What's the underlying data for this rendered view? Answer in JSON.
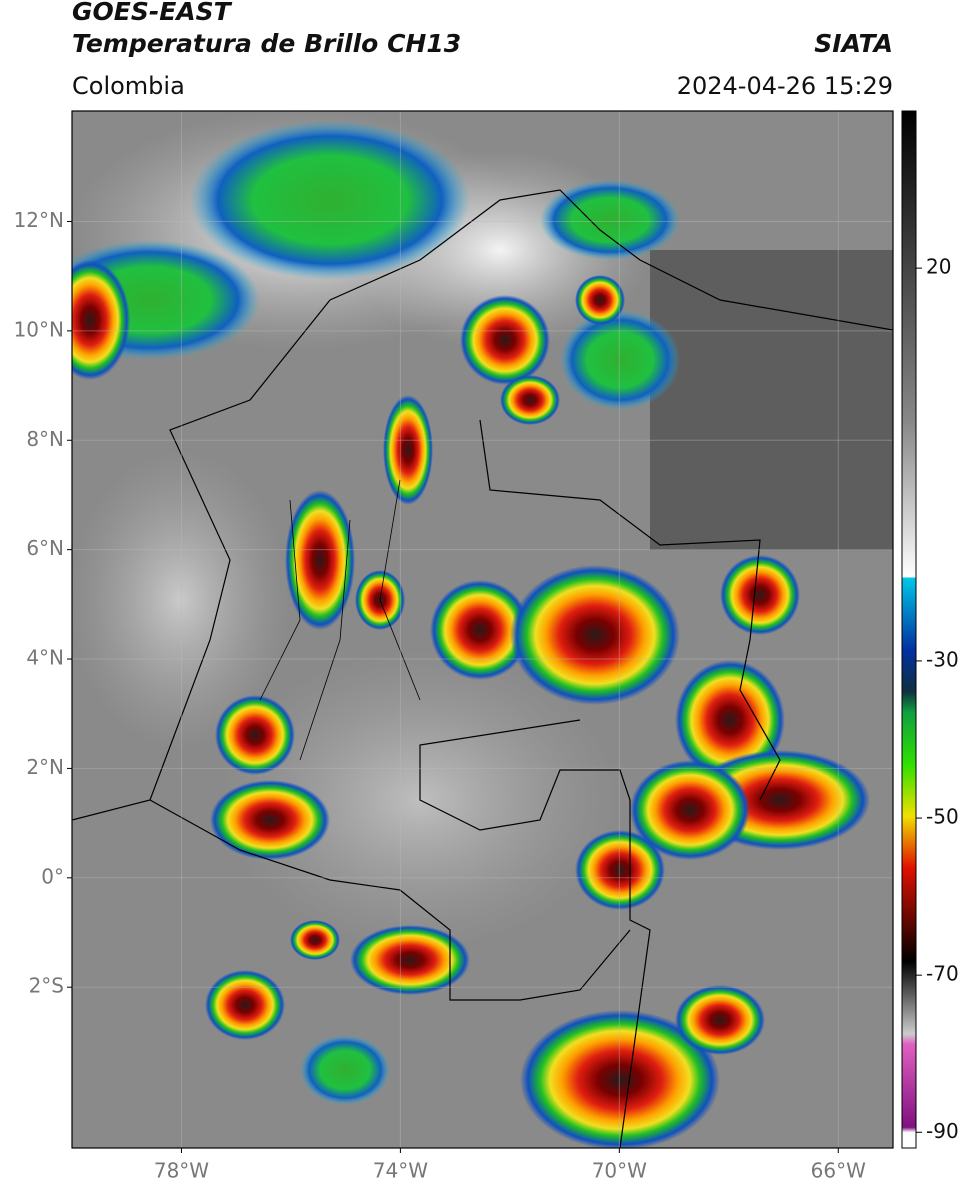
{
  "header": {
    "satellite": "GOES-EAST",
    "product": "Temperatura de Brillo CH13",
    "agency": "SIATA",
    "region": "Colombia",
    "datetime": "2024-04-26 15:29"
  },
  "map": {
    "lon_range": [
      -80,
      -65
    ],
    "lat_range": [
      -4.94,
      14.02
    ],
    "lat_ticks": [
      {
        "value": 12,
        "label": "12°N"
      },
      {
        "value": 10,
        "label": "10°N"
      },
      {
        "value": 8,
        "label": "8°N"
      },
      {
        "value": 6,
        "label": "6°N"
      },
      {
        "value": 4,
        "label": "4°N"
      },
      {
        "value": 2,
        "label": "2°N"
      },
      {
        "value": 0,
        "label": "0°"
      },
      {
        "value": -2,
        "label": "2°S"
      }
    ],
    "lon_ticks": [
      {
        "value": -78,
        "label": "78°W"
      },
      {
        "value": -74,
        "label": "74°W"
      },
      {
        "value": -70,
        "label": "70°W"
      },
      {
        "value": -66,
        "label": "66°W"
      }
    ]
  },
  "colorbar": {
    "range": [
      -92,
      40
    ],
    "ticks": [
      20,
      -30,
      -50,
      -70,
      -90
    ]
  }
}
